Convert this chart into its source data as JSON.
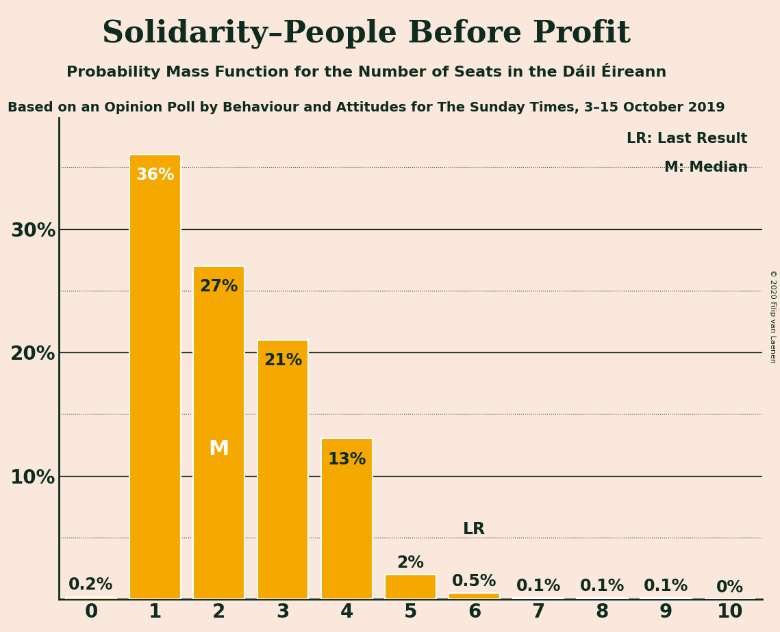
{
  "title": "Solidarity–People Before Profit",
  "subtitle": "Probability Mass Function for the Number of Seats in the Dáil Éireann",
  "source_line": "Based on an Opinion Poll by Behaviour and Attitudes for The Sunday Times, 3–15 October 2019",
  "copyright": "© 2020 Filip van Laenen",
  "categories": [
    0,
    1,
    2,
    3,
    4,
    5,
    6,
    7,
    8,
    9,
    10
  ],
  "values": [
    0.2,
    36,
    27,
    21,
    13,
    2,
    0.5,
    0.1,
    0.1,
    0.1,
    0.0
  ],
  "bar_color": "#F5A800",
  "bar_edge_color": "#FFFFFF",
  "background_color": "#FAE8DC",
  "text_color": "#0D2B1E",
  "ylabel_ticks": [
    10,
    20,
    30
  ],
  "ytick_minor": [
    5,
    15,
    25,
    35
  ],
  "ylim": [
    0,
    39
  ],
  "median_bar": 2,
  "last_result_bar": 6,
  "legend_lr": "LR: Last Result",
  "legend_m": "M: Median",
  "bar_labels": [
    "0.2%",
    "36%",
    "27%",
    "21%",
    "13%",
    "2%",
    "0.5%",
    "0.1%",
    "0.1%",
    "0.1%",
    "0%"
  ],
  "label_inside": [
    false,
    true,
    true,
    true,
    true,
    false,
    false,
    false,
    false,
    false,
    false
  ],
  "title_fontsize": 32,
  "subtitle_fontsize": 16,
  "source_fontsize": 14,
  "axis_label_fontsize": 20,
  "bar_label_fontsize": 17,
  "legend_fontsize": 15
}
